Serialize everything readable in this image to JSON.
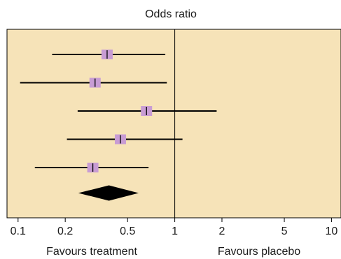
{
  "chart_data": {
    "type": "forest",
    "title": "Odds ratio",
    "x_scale": "log",
    "xlim": [
      0.085,
      11.5
    ],
    "x_ticks": [
      0.1,
      0.2,
      0.5,
      1,
      2,
      5,
      10
    ],
    "x_tick_labels": [
      "0.1",
      "0.2",
      "0.5",
      "1",
      "2",
      "5",
      "10"
    ],
    "reference_line": 1,
    "favour_labels": {
      "left": "Favours treatment",
      "right": "Favours placebo"
    },
    "studies": [
      {
        "or": 0.37,
        "lower": 0.165,
        "upper": 0.87
      },
      {
        "or": 0.31,
        "lower": 0.103,
        "upper": 0.89
      },
      {
        "or": 0.66,
        "lower": 0.24,
        "upper": 1.85
      },
      {
        "or": 0.45,
        "lower": 0.205,
        "upper": 1.12
      },
      {
        "or": 0.3,
        "lower": 0.128,
        "upper": 0.68
      }
    ],
    "pooled": {
      "or": 0.38,
      "lower": 0.25,
      "upper": 0.57
    },
    "colors": {
      "panel": "#f6e3b8",
      "marker": "#c89cd4",
      "line": "#000000",
      "diamond": "#000000"
    }
  }
}
